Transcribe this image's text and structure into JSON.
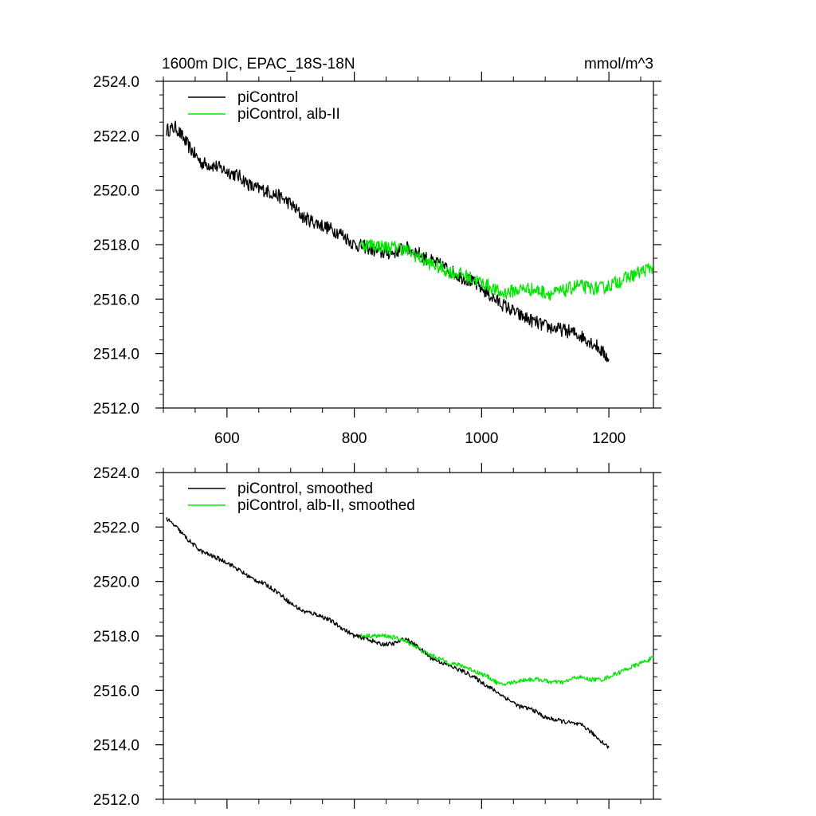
{
  "figure": {
    "title_left": "1600m DIC, EPAC_18S-18N",
    "title_right": "mmol/m^3"
  },
  "colors": {
    "black": "#000000",
    "green": "#00e600"
  },
  "chart_data": [
    {
      "type": "line",
      "title": "1600m DIC, EPAC_18S-18N",
      "units": "mmol/m^3",
      "xlim": [
        500,
        1270
      ],
      "ylim": [
        2512.0,
        2524.0
      ],
      "x_ticks": [
        600,
        800,
        1000,
        1200
      ],
      "x_tick_labels": [
        "600",
        "800",
        "1000",
        "1200"
      ],
      "y_ticks": [
        2512.0,
        2514.0,
        2516.0,
        2518.0,
        2520.0,
        2522.0,
        2524.0
      ],
      "y_tick_labels": [
        "2512.0",
        "2514.0",
        "2516.0",
        "2518.0",
        "2520.0",
        "2522.0",
        "2524.0"
      ],
      "legend": "top-left",
      "grid": false,
      "series": [
        {
          "name": "piControl",
          "color": "#000000",
          "noise": 0.25,
          "x": [
            505,
            520,
            540,
            560,
            580,
            600,
            620,
            640,
            660,
            680,
            700,
            720,
            740,
            760,
            780,
            800,
            820,
            840,
            860,
            880,
            900,
            920,
            940,
            960,
            980,
            1000,
            1020,
            1040,
            1060,
            1080,
            1100,
            1120,
            1140,
            1160,
            1180,
            1200
          ],
          "values": [
            2522.2,
            2522.3,
            2521.6,
            2521.0,
            2520.9,
            2520.7,
            2520.5,
            2520.1,
            2520.0,
            2519.8,
            2519.5,
            2519.0,
            2518.8,
            2518.6,
            2518.4,
            2518.0,
            2517.9,
            2517.7,
            2517.7,
            2517.9,
            2517.7,
            2517.4,
            2517.2,
            2516.9,
            2516.7,
            2516.4,
            2516.0,
            2515.7,
            2515.4,
            2515.2,
            2515.0,
            2514.9,
            2514.8,
            2514.6,
            2514.3,
            2513.8
          ]
        },
        {
          "name": "piControl, alb-II",
          "color": "#00e600",
          "noise": 0.25,
          "x": [
            810,
            830,
            850,
            870,
            890,
            910,
            930,
            950,
            970,
            990,
            1010,
            1030,
            1050,
            1070,
            1090,
            1110,
            1130,
            1150,
            1170,
            1190,
            1210,
            1230,
            1250,
            1270
          ],
          "values": [
            2518.0,
            2518.0,
            2517.9,
            2517.9,
            2517.7,
            2517.4,
            2517.2,
            2517.0,
            2516.9,
            2516.7,
            2516.5,
            2516.2,
            2516.3,
            2516.4,
            2516.3,
            2516.2,
            2516.3,
            2516.5,
            2516.4,
            2516.4,
            2516.6,
            2516.8,
            2517.0,
            2517.2
          ]
        }
      ]
    },
    {
      "type": "line",
      "xlim": [
        500,
        1270
      ],
      "ylim": [
        2512.0,
        2524.0
      ],
      "x_ticks": [
        600,
        800,
        1000,
        1200
      ],
      "y_ticks": [
        2512.0,
        2514.0,
        2516.0,
        2518.0,
        2520.0,
        2522.0,
        2524.0
      ],
      "y_tick_labels": [
        "2512.0",
        "2514.0",
        "2516.0",
        "2518.0",
        "2520.0",
        "2522.0",
        "2524.0"
      ],
      "legend": "top-left",
      "grid": false,
      "series": [
        {
          "name": "piControl, smoothed",
          "color": "#000000",
          "noise": 0.08,
          "x": [
            505,
            520,
            540,
            560,
            580,
            600,
            620,
            640,
            660,
            680,
            700,
            720,
            740,
            760,
            780,
            800,
            820,
            840,
            860,
            880,
            900,
            920,
            940,
            960,
            980,
            1000,
            1020,
            1040,
            1060,
            1080,
            1100,
            1120,
            1140,
            1160,
            1180,
            1200
          ],
          "values": [
            2522.3,
            2522.0,
            2521.5,
            2521.1,
            2520.9,
            2520.7,
            2520.4,
            2520.1,
            2519.9,
            2519.6,
            2519.2,
            2518.9,
            2518.8,
            2518.6,
            2518.3,
            2518.0,
            2517.9,
            2517.7,
            2517.7,
            2517.9,
            2517.6,
            2517.2,
            2517.0,
            2516.8,
            2516.6,
            2516.3,
            2516.0,
            2515.7,
            2515.4,
            2515.3,
            2515.0,
            2514.9,
            2514.8,
            2514.7,
            2514.3,
            2513.9
          ]
        },
        {
          "name": "piControl, alb-II, smoothed",
          "color": "#00e600",
          "noise": 0.08,
          "x": [
            810,
            830,
            850,
            870,
            890,
            910,
            930,
            950,
            970,
            990,
            1010,
            1030,
            1050,
            1070,
            1090,
            1110,
            1130,
            1150,
            1170,
            1190,
            1210,
            1230,
            1250,
            1270
          ],
          "values": [
            2518.0,
            2518.0,
            2518.0,
            2517.9,
            2517.7,
            2517.4,
            2517.2,
            2517.0,
            2516.9,
            2516.7,
            2516.5,
            2516.2,
            2516.3,
            2516.4,
            2516.4,
            2516.3,
            2516.3,
            2516.5,
            2516.4,
            2516.4,
            2516.6,
            2516.8,
            2517.0,
            2517.2
          ]
        }
      ]
    }
  ]
}
